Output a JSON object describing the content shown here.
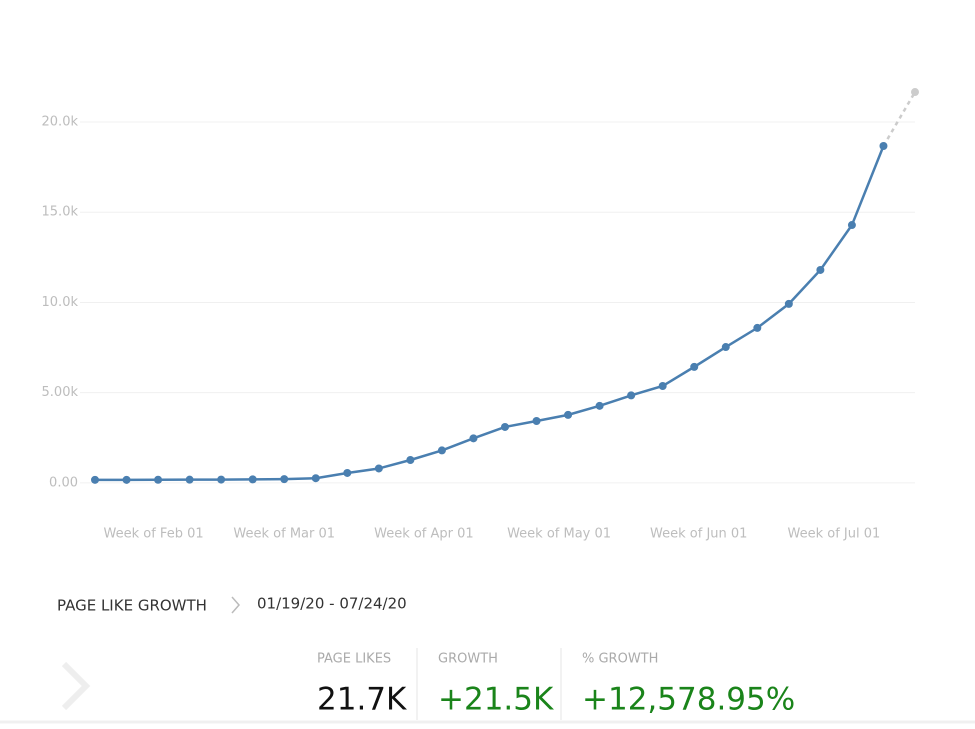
{
  "chart_data": {
    "type": "line",
    "x": [
      0,
      7,
      14,
      21,
      28,
      35,
      42,
      49,
      56,
      63,
      70,
      77,
      84,
      91,
      98,
      105,
      112,
      119,
      126,
      133,
      140,
      147,
      154,
      161,
      168,
      175,
      182
    ],
    "series": [
      {
        "color": "#4a7fb0",
        "projected_color": "#cccccc",
        "projected_last": true,
        "values": [
          170,
          170,
          175,
          180,
          185,
          195,
          210,
          260,
          550,
          800,
          1270,
          1800,
          2470,
          3100,
          3430,
          3770,
          4270,
          4850,
          5370,
          6430,
          7530,
          8590,
          9920,
          11800,
          14290,
          18670,
          21660
        ]
      }
    ],
    "xlim": [
      0,
      182
    ],
    "xticks": [
      {
        "value": 13,
        "label": "Week of Feb 01"
      },
      {
        "value": 42,
        "label": "Week of Mar 01"
      },
      {
        "value": 73,
        "label": "Week of Apr 01"
      },
      {
        "value": 103,
        "label": "Week of May 01"
      },
      {
        "value": 134,
        "label": "Week of Jun 01"
      },
      {
        "value": 164,
        "label": "Week of Jul 01"
      }
    ],
    "ylim": [
      -2000,
      24000
    ],
    "yticks": [
      {
        "value": 0,
        "label": "0.00"
      },
      {
        "value": 5000,
        "label": "5.00k"
      },
      {
        "value": 10000,
        "label": "10.0k"
      },
      {
        "value": 15000,
        "label": "15.0k"
      },
      {
        "value": 20000,
        "label": "20.0k"
      }
    ],
    "grid": true
  },
  "summary": {
    "title": "PAGE LIKE GROWTH",
    "date_range": "01/19/20 - 07/24/20",
    "stats": [
      {
        "label": "PAGE LIKES",
        "value": "21.7K"
      },
      {
        "label": "GROWTH",
        "value": "+21.5K"
      },
      {
        "label": "% GROWTH",
        "value": "+12,578.95%"
      }
    ]
  }
}
